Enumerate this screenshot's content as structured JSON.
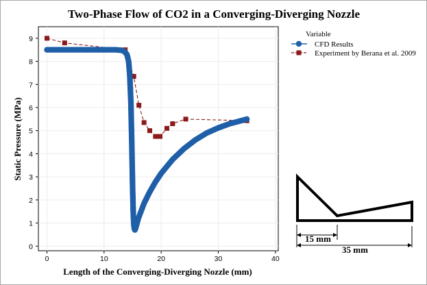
{
  "chart_data": {
    "type": "line",
    "title": "Two-Phase Flow of CO2 in a Converging-Diverging Nozzle",
    "xlabel": "Length of the Converging-Diverging Nozzle (mm)",
    "ylabel": "Static Pressure (MPa)",
    "xlim": [
      -1.5,
      40.5
    ],
    "ylim": [
      -0.2,
      9.5
    ],
    "xticks": [
      0,
      10,
      20,
      30,
      40
    ],
    "yticks": [
      0,
      1,
      2,
      3,
      4,
      5,
      6,
      7,
      8,
      9
    ],
    "grid": true,
    "legend": {
      "title": "Variable",
      "position": "right, outside plot area, top"
    },
    "series": [
      {
        "name": "CFD Results",
        "marker": "circle",
        "color": "#1f5fa8",
        "x": [
          0,
          2,
          4,
          6,
          8,
          10,
          12,
          13,
          13.5,
          14,
          14.3,
          14.5,
          14.7,
          14.85,
          15.0,
          15.1,
          15.2,
          15.3,
          15.4,
          15.5,
          16,
          17,
          18,
          19,
          20,
          22,
          24,
          26,
          28,
          30,
          32,
          34,
          35
        ],
        "y": [
          8.5,
          8.5,
          8.5,
          8.5,
          8.5,
          8.5,
          8.5,
          8.48,
          8.44,
          8.3,
          8.0,
          7.4,
          6.2,
          4.5,
          2.5,
          1.5,
          0.95,
          0.75,
          0.7,
          0.75,
          1.2,
          1.85,
          2.35,
          2.78,
          3.15,
          3.75,
          4.22,
          4.6,
          4.9,
          5.12,
          5.3,
          5.43,
          5.5
        ]
      },
      {
        "name": "Experiment by Berana et al. 2009",
        "marker": "square",
        "line": "dashed",
        "color": "#8b1a1a",
        "x": [
          0,
          3.1,
          13.7,
          15.2,
          16.1,
          17,
          18,
          19,
          19.8,
          21,
          22,
          24.3,
          35
        ],
        "y": [
          9.0,
          8.8,
          8.5,
          7.35,
          6.1,
          5.35,
          5.0,
          4.75,
          4.75,
          5.1,
          5.3,
          5.5,
          5.43
        ]
      }
    ]
  },
  "inset": {
    "label_a": "15 mm",
    "label_b": "35 mm"
  }
}
